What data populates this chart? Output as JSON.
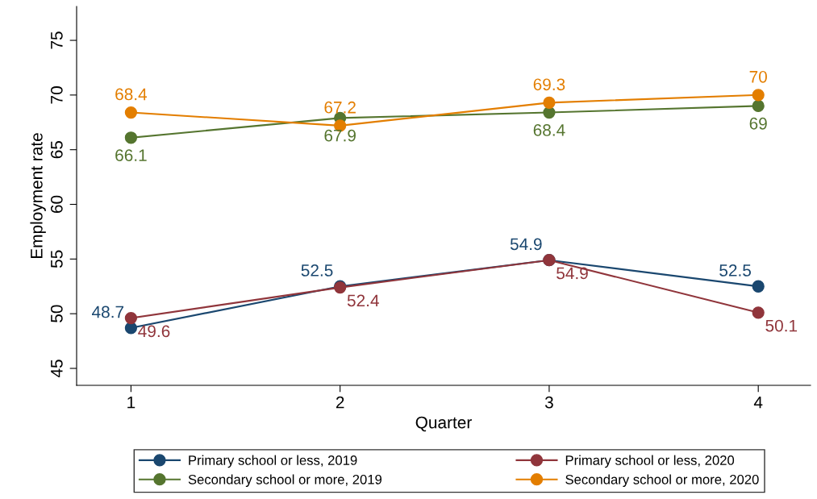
{
  "chart_data": {
    "type": "line",
    "xlabel": "Quarter",
    "ylabel": "Employment rate",
    "x": [
      1,
      2,
      3,
      4
    ],
    "series": [
      {
        "name": "Primary school or less, 2019",
        "color": "#1a476f",
        "values": [
          48.7,
          52.5,
          54.9,
          52.5
        ]
      },
      {
        "name": "Primary school or less, 2020",
        "color": "#90353b",
        "values": [
          49.6,
          52.4,
          54.9,
          50.1
        ]
      },
      {
        "name": "Secondary school or more, 2019",
        "color": "#55752f",
        "values": [
          66.1,
          67.9,
          68.4,
          69
        ]
      },
      {
        "name": "Secondary school or more, 2020",
        "color": "#e37e00",
        "values": [
          68.4,
          67.2,
          69.3,
          70
        ]
      }
    ],
    "xlim": [
      0.74,
      4.25
    ],
    "xticks": [
      1,
      2,
      3,
      4
    ],
    "ylim": [
      43.45,
      78.1
    ],
    "yticks": [
      45,
      50,
      55,
      60,
      65,
      70,
      75
    ],
    "grid": false,
    "legend": "bottom",
    "marker": "circle",
    "line_style": "solid",
    "data_labels": true
  }
}
